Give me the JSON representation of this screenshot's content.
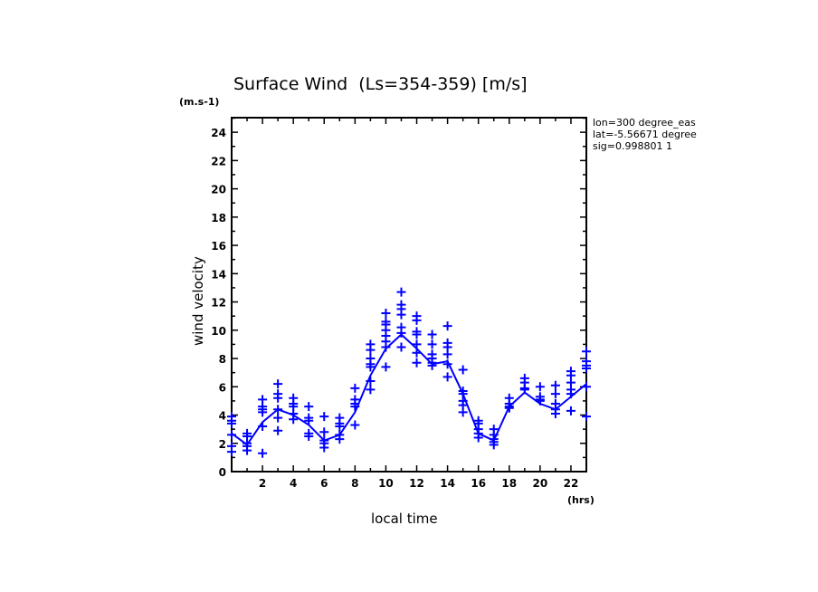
{
  "chart_data": {
    "type": "scatter",
    "title": "Surface Wind  (Ls=354-359) [m/s]",
    "xlabel": "local time",
    "ylabel": "wind velocity",
    "x_unit": "(hrs)",
    "y_unit": "(m.s-1)",
    "xlim": [
      0,
      23
    ],
    "ylim": [
      0,
      25
    ],
    "xticks": [
      2,
      4,
      6,
      8,
      10,
      12,
      14,
      16,
      18,
      20,
      22
    ],
    "yticks": [
      0,
      2,
      4,
      6,
      8,
      10,
      12,
      14,
      16,
      18,
      20,
      22,
      24
    ],
    "info": [
      "lon=300 degree_eas",
      "lat=-5.56671 degree",
      "sig=0.998801 1"
    ],
    "color": "#0000ff",
    "mean_line": {
      "x": [
        0,
        1,
        2,
        3,
        4,
        5,
        6,
        7,
        8,
        9,
        10,
        11,
        12,
        13,
        14,
        15,
        16,
        17,
        18,
        19,
        20,
        21,
        22,
        23
      ],
      "y": [
        2.7,
        1.9,
        3.5,
        4.4,
        4.0,
        3.3,
        2.2,
        2.6,
        4.2,
        6.8,
        8.7,
        9.7,
        8.7,
        7.6,
        7.8,
        5.5,
        2.7,
        2.2,
        4.6,
        5.6,
        4.8,
        4.4,
        5.3,
        6.2
      ]
    },
    "points": [
      [
        3.9,
        3.6,
        3.4,
        2.6,
        1.8,
        1.4
      ],
      [
        2.7,
        2.5,
        2.0,
        1.8,
        1.5
      ],
      [
        5.1,
        4.6,
        4.4,
        4.2,
        3.2,
        1.3
      ],
      [
        6.2,
        5.5,
        5.2,
        4.4,
        3.8,
        2.9
      ],
      [
        5.2,
        4.8,
        4.6,
        4.1,
        3.7
      ],
      [
        4.6,
        3.8,
        3.6,
        2.7,
        2.5
      ],
      [
        3.9,
        2.8,
        2.2,
        2.0,
        1.7
      ],
      [
        3.8,
        3.4,
        3.2,
        2.6,
        2.3
      ],
      [
        5.9,
        5.1,
        4.8,
        4.6,
        3.3
      ],
      [
        9.0,
        8.6,
        8.0,
        7.6,
        7.4,
        6.4,
        5.8
      ],
      [
        11.2,
        10.6,
        10.4,
        10.0,
        9.6,
        9.2,
        8.8,
        7.4
      ],
      [
        12.7,
        11.8,
        11.5,
        11.1,
        10.2,
        9.8,
        8.8
      ],
      [
        11.0,
        10.7,
        9.9,
        9.7,
        9.0,
        8.4,
        7.7
      ],
      [
        9.7,
        9.0,
        8.3,
        8.0,
        7.7,
        7.5
      ],
      [
        10.3,
        9.1,
        8.8,
        8.3,
        7.6,
        6.7
      ],
      [
        7.2,
        5.7,
        5.5,
        5.0,
        4.7,
        4.2
      ],
      [
        3.6,
        3.4,
        3.0,
        2.7,
        2.4
      ],
      [
        3.0,
        2.6,
        2.3,
        2.1,
        1.9
      ],
      [
        5.2,
        4.8,
        4.6,
        4.5
      ],
      [
        6.6,
        6.3,
        5.9,
        5.8
      ],
      [
        6.0,
        5.3,
        5.1,
        5.0
      ],
      [
        6.1,
        5.5,
        4.8,
        4.4,
        4.1
      ],
      [
        7.1,
        6.8,
        6.3,
        5.8,
        5.5,
        4.3
      ],
      [
        8.5,
        7.8,
        7.5,
        7.3,
        6.0,
        3.9
      ]
    ]
  }
}
